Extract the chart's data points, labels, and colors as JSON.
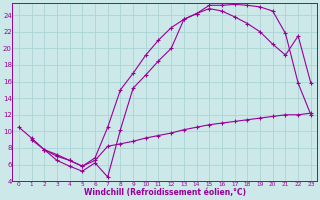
{
  "xlabel": "Windchill (Refroidissement éolien,°C)",
  "bg_color": "#cce8e8",
  "line_color": "#990099",
  "grid_color": "#aad4d4",
  "xlim": [
    -0.5,
    23.5
  ],
  "ylim": [
    4,
    25.5
  ],
  "xticks": [
    0,
    1,
    2,
    3,
    4,
    5,
    6,
    7,
    8,
    9,
    10,
    11,
    12,
    13,
    14,
    15,
    16,
    17,
    18,
    19,
    20,
    21,
    22,
    23
  ],
  "yticks": [
    4,
    6,
    8,
    10,
    12,
    14,
    16,
    18,
    20,
    22,
    24
  ],
  "curve1_x": [
    0,
    1,
    2,
    3,
    4,
    5,
    6,
    7,
    8,
    9,
    10,
    11,
    12,
    13,
    14,
    15,
    16,
    17,
    18,
    19,
    20,
    21,
    22,
    23
  ],
  "curve1_y": [
    10.5,
    9.2,
    7.8,
    6.5,
    5.8,
    5.2,
    6.2,
    4.5,
    10.2,
    15.2,
    16.8,
    18.5,
    20.0,
    23.5,
    24.2,
    25.2,
    25.2,
    25.3,
    25.2,
    25.0,
    24.5,
    21.8,
    15.8,
    12.0
  ],
  "curve2_x": [
    1,
    2,
    3,
    4,
    5,
    6,
    7,
    8,
    9,
    10,
    11,
    12,
    13,
    14,
    15,
    16,
    17,
    18,
    19,
    20,
    21,
    22,
    23
  ],
  "curve2_y": [
    9.0,
    7.8,
    7.0,
    6.5,
    5.8,
    6.8,
    10.5,
    15.0,
    17.0,
    19.2,
    21.0,
    22.5,
    23.5,
    24.2,
    24.8,
    24.5,
    23.8,
    23.0,
    22.0,
    20.5,
    19.2,
    21.5,
    15.8
  ],
  "curve3_x": [
    2,
    3,
    4,
    5,
    6,
    7,
    8,
    9,
    10,
    11,
    12,
    13,
    14,
    15,
    16,
    17,
    18,
    19,
    20,
    21,
    22,
    23
  ],
  "curve3_y": [
    7.8,
    7.2,
    6.5,
    5.8,
    6.5,
    8.2,
    8.5,
    8.8,
    9.2,
    9.5,
    9.8,
    10.2,
    10.5,
    10.8,
    11.0,
    11.2,
    11.4,
    11.6,
    11.8,
    12.0,
    12.0,
    12.2
  ]
}
